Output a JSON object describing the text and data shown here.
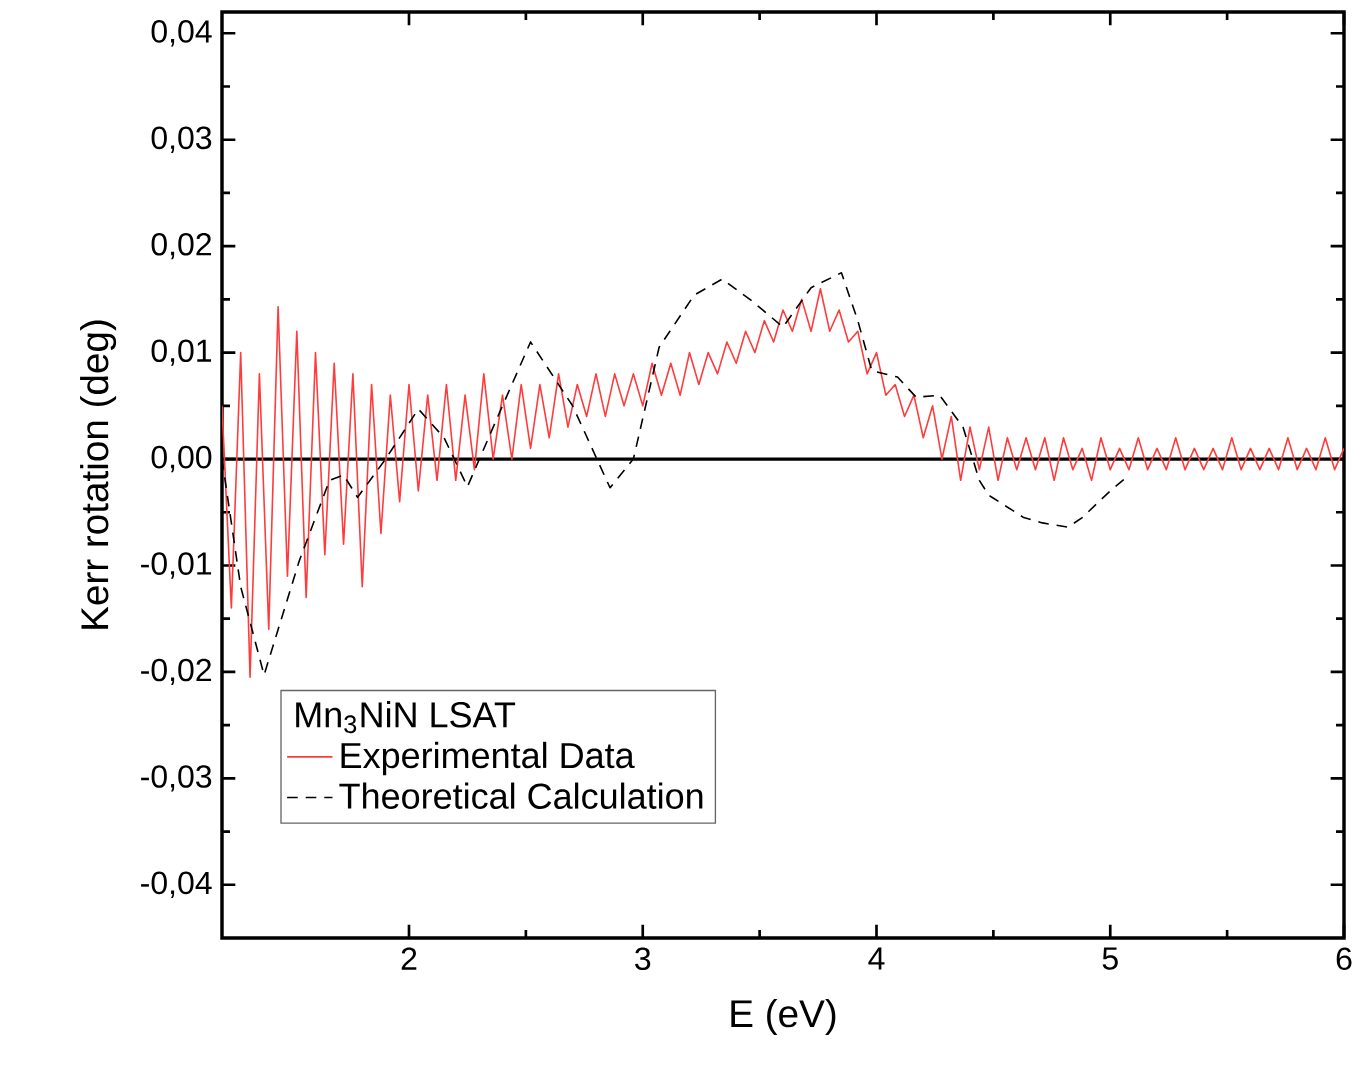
{
  "chart_data": {
    "type": "line",
    "xlabel": "E (eV)",
    "ylabel": "Kerr rotation (deg)",
    "legend_title": "Mn$_{3}$NiN LSAT",
    "xlim": [
      1.2,
      6
    ],
    "xticks": [
      2,
      3,
      4,
      5,
      6
    ],
    "ylim": [
      -0.045,
      0.042
    ],
    "yticks": [
      {
        "value": -0.04,
        "label": "-0,04"
      },
      {
        "value": -0.03,
        "label": "-0,03"
      },
      {
        "value": -0.02,
        "label": "-0,02"
      },
      {
        "value": -0.01,
        "label": "-0,01"
      },
      {
        "value": 0,
        "label": "0,00"
      },
      {
        "value": 0.01,
        "label": "0,01"
      },
      {
        "value": 0.02,
        "label": "0,02"
      },
      {
        "value": 0.03,
        "label": "0,03"
      },
      {
        "value": 0.04,
        "label": "0,04"
      }
    ],
    "grid": false,
    "legend": "bottom left",
    "marker": "none",
    "ref_lines": [
      {
        "axis": "y",
        "value": 0,
        "color": "#000000",
        "line_style": "solid"
      }
    ],
    "series": [
      {
        "name": "Experimental Data",
        "color": "#ff3b3b",
        "line_style": "solid",
        "x": [
          1.2,
          1.24,
          1.28,
          1.32,
          1.36,
          1.4,
          1.44,
          1.48,
          1.52,
          1.56,
          1.6,
          1.64,
          1.68,
          1.72,
          1.76,
          1.8,
          1.84,
          1.88,
          1.92,
          1.96,
          2.0,
          2.04,
          2.08,
          2.12,
          2.16,
          2.2,
          2.24,
          2.28,
          2.32,
          2.36,
          2.4,
          2.44,
          2.48,
          2.52,
          2.56,
          2.6,
          2.64,
          2.68,
          2.72,
          2.76,
          2.8,
          2.84,
          2.88,
          2.92,
          2.96,
          3.0,
          3.04,
          3.08,
          3.12,
          3.16,
          3.2,
          3.24,
          3.28,
          3.32,
          3.36,
          3.4,
          3.44,
          3.48,
          3.52,
          3.56,
          3.6,
          3.64,
          3.68,
          3.72,
          3.76,
          3.8,
          3.84,
          3.88,
          3.92,
          3.96,
          4.0,
          4.04,
          4.08,
          4.12,
          4.16,
          4.2,
          4.24,
          4.28,
          4.32,
          4.36,
          4.4,
          4.44,
          4.48,
          4.52,
          4.56,
          4.6,
          4.64,
          4.68,
          4.72,
          4.76,
          4.8,
          4.84,
          4.88,
          4.92,
          4.96,
          5.0,
          5.04,
          5.08,
          5.12,
          5.16,
          5.2,
          5.24,
          5.28,
          5.32,
          5.36,
          5.4,
          5.44,
          5.48,
          5.52,
          5.56,
          5.6,
          5.64,
          5.68,
          5.72,
          5.76,
          5.8,
          5.84,
          5.88,
          5.92,
          5.96,
          6.0
        ],
        "values": [
          0.005,
          -0.014,
          0.01,
          -0.0205,
          0.008,
          -0.016,
          0.0143,
          -0.011,
          0.012,
          -0.013,
          0.01,
          -0.009,
          0.009,
          -0.008,
          0.008,
          -0.012,
          0.007,
          -0.007,
          0.006,
          -0.004,
          0.007,
          -0.003,
          0.006,
          -0.002,
          0.007,
          -0.002,
          0.006,
          -0.001,
          0.008,
          0.0,
          0.006,
          0.0,
          0.007,
          0.001,
          0.007,
          0.002,
          0.008,
          0.003,
          0.007,
          0.004,
          0.008,
          0.004,
          0.008,
          0.005,
          0.008,
          0.005,
          0.009,
          0.006,
          0.009,
          0.006,
          0.01,
          0.007,
          0.01,
          0.008,
          0.011,
          0.009,
          0.012,
          0.01,
          0.013,
          0.011,
          0.014,
          0.012,
          0.015,
          0.012,
          0.016,
          0.012,
          0.014,
          0.011,
          0.012,
          0.008,
          0.01,
          0.006,
          0.007,
          0.004,
          0.006,
          0.002,
          0.005,
          0.0,
          0.004,
          -0.002,
          0.003,
          -0.001,
          0.003,
          -0.002,
          0.002,
          -0.001,
          0.002,
          -0.001,
          0.002,
          -0.002,
          0.002,
          -0.001,
          0.001,
          -0.002,
          0.002,
          -0.001,
          0.001,
          -0.001,
          0.002,
          -0.001,
          0.001,
          -0.001,
          0.002,
          -0.001,
          0.001,
          -0.001,
          0.001,
          -0.001,
          0.002,
          -0.001,
          0.001,
          -0.001,
          0.001,
          -0.001,
          0.002,
          -0.001,
          0.001,
          -0.001,
          0.002,
          -0.001,
          0.001
        ]
      },
      {
        "name": "Theoretical Calculation",
        "color": "#000000",
        "line_style": "dashed",
        "x": [
          1.2,
          1.28,
          1.38,
          1.53,
          1.66,
          1.72,
          1.78,
          1.9,
          2.04,
          2.15,
          2.25,
          2.38,
          2.52,
          2.7,
          2.86,
          2.96,
          3.07,
          3.22,
          3.34,
          3.47,
          3.6,
          3.72,
          3.85,
          3.92,
          3.98,
          4.09,
          4.17,
          4.27,
          4.37,
          4.44,
          4.48,
          4.63,
          4.71,
          4.82,
          4.88,
          5.0,
          5.07
        ],
        "values": [
          0.0,
          -0.012,
          -0.0203,
          -0.0096,
          -0.002,
          -0.0015,
          -0.0036,
          0.0,
          0.0047,
          0.002,
          -0.0026,
          0.004,
          0.011,
          0.005,
          -0.0027,
          0.0,
          0.0105,
          0.0154,
          0.0169,
          0.0148,
          0.0124,
          0.0161,
          0.0175,
          0.013,
          0.0083,
          0.0077,
          0.0058,
          0.006,
          0.003,
          -0.002,
          -0.0034,
          -0.0055,
          -0.006,
          -0.0064,
          -0.0055,
          -0.003,
          -0.0017
        ]
      }
    ]
  }
}
